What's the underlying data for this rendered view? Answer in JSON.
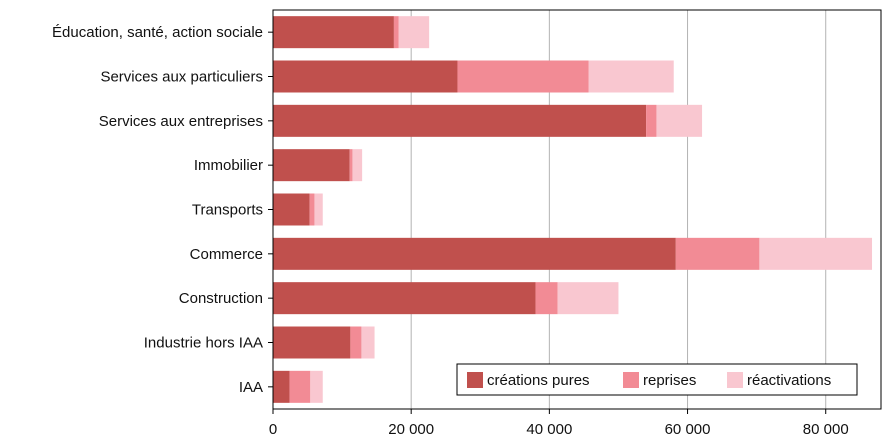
{
  "chart_data": {
    "type": "bar",
    "orientation": "horizontal",
    "stacked": true,
    "categories": [
      "Éducation, santé, action sociale",
      "Services aux particuliers",
      "Services aux entreprises",
      "Immobilier",
      "Transports",
      "Commerce",
      "Construction",
      "Industrie hors IAA",
      "IAA"
    ],
    "series": [
      {
        "name": "créations pures",
        "color": "#c0504d",
        "values": [
          17500,
          26700,
          54000,
          11100,
          5300,
          58300,
          38000,
          11200,
          2400
        ]
      },
      {
        "name": "reprises",
        "color": "#f28b95",
        "values": [
          700,
          19000,
          1500,
          400,
          700,
          12100,
          3200,
          1600,
          3000
        ]
      },
      {
        "name": "réactivations",
        "color": "#f9c7d0",
        "values": [
          4400,
          12300,
          6600,
          1400,
          1200,
          16300,
          8800,
          1900,
          1800
        ]
      }
    ],
    "xlim": [
      0,
      88000
    ],
    "xticks": [
      0,
      20000,
      40000,
      60000,
      80000
    ],
    "xtick_labels": [
      "0",
      "20 000",
      "40 000",
      "60 000",
      "80 000"
    ],
    "grid": "vertical",
    "legend_position": "bottom-right",
    "title": "",
    "xlabel": "",
    "ylabel": ""
  }
}
